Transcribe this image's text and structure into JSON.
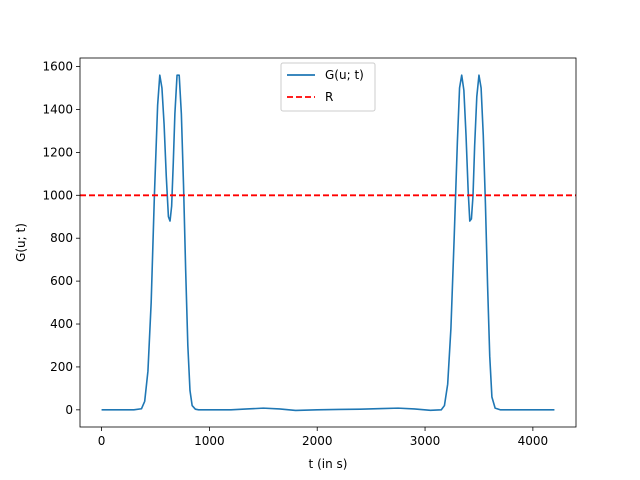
{
  "chart_data": {
    "type": "line",
    "title": "",
    "xlabel": "t (in s)",
    "ylabel": "G(u; t)",
    "xlim": [
      -200,
      4400
    ],
    "ylim": [
      -80,
      1640
    ],
    "xticks": [
      0,
      1000,
      2000,
      3000,
      4000
    ],
    "yticks": [
      0,
      200,
      400,
      600,
      800,
      1000,
      1200,
      1400,
      1600
    ],
    "grid": false,
    "legend_position": "top-center",
    "series": [
      {
        "name": "G(u; t)",
        "style": "solid",
        "color": "#1f77b4",
        "x": [
          0,
          300,
          370,
          400,
          430,
          460,
          490,
          520,
          540,
          560,
          580,
          600,
          620,
          635,
          650,
          665,
          680,
          700,
          720,
          740,
          760,
          780,
          800,
          820,
          840,
          870,
          900,
          1000,
          1200,
          1350,
          1500,
          1650,
          1800,
          2000,
          2200,
          2400,
          2600,
          2750,
          2900,
          3050,
          3150,
          3180,
          3210,
          3240,
          3270,
          3300,
          3320,
          3340,
          3360,
          3380,
          3400,
          3415,
          3430,
          3445,
          3460,
          3480,
          3500,
          3520,
          3540,
          3560,
          3580,
          3600,
          3620,
          3650,
          3700,
          3800,
          4000,
          4200
        ],
        "y": [
          0,
          0,
          5,
          40,
          180,
          500,
          1000,
          1420,
          1560,
          1500,
          1330,
          1090,
          900,
          880,
          950,
          1150,
          1380,
          1560,
          1560,
          1380,
          1050,
          650,
          300,
          90,
          20,
          3,
          0,
          0,
          0,
          4,
          8,
          4,
          -3,
          0,
          2,
          3,
          6,
          8,
          4,
          -2,
          0,
          20,
          120,
          380,
          800,
          1250,
          1500,
          1560,
          1490,
          1280,
          1020,
          880,
          890,
          1000,
          1230,
          1460,
          1560,
          1500,
          1280,
          960,
          580,
          250,
          60,
          8,
          0,
          0,
          0,
          0
        ]
      },
      {
        "name": "R",
        "style": "dashed",
        "color": "#ff0000",
        "x": [
          -200,
          4400
        ],
        "y": [
          1000,
          1000
        ]
      }
    ]
  }
}
